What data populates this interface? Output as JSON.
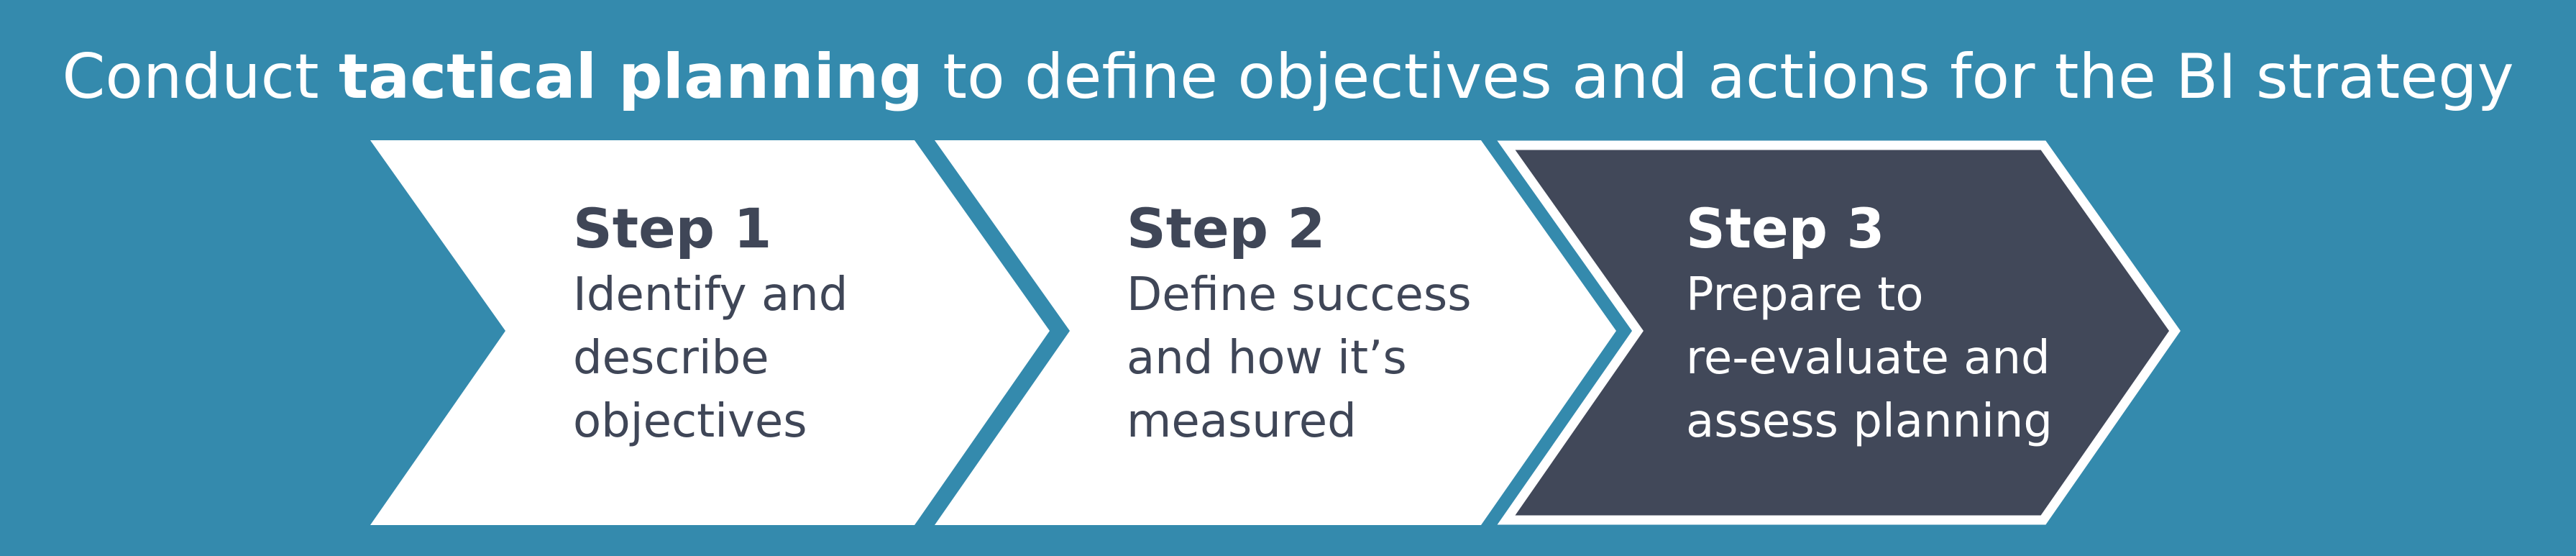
{
  "title": {
    "pre": "Conduct ",
    "bold": "tactical planning",
    "post": " to define objectives and actions for the BI strategy"
  },
  "steps": [
    {
      "title": "Step 1",
      "lines": [
        "Identify and",
        "describe",
        "objectives"
      ]
    },
    {
      "title": "Step 2",
      "lines": [
        "Define success",
        "and how it’s",
        "measured"
      ]
    },
    {
      "title": "Step 3",
      "lines": [
        "Prepare to",
        "re-evaluate and",
        "assess planning"
      ]
    }
  ],
  "colors": {
    "background": "#348aad",
    "chevron_light": "#ffffff",
    "chevron_dark": "#414859",
    "text_dark": "#3f4657",
    "text_light": "#ffffff"
  }
}
